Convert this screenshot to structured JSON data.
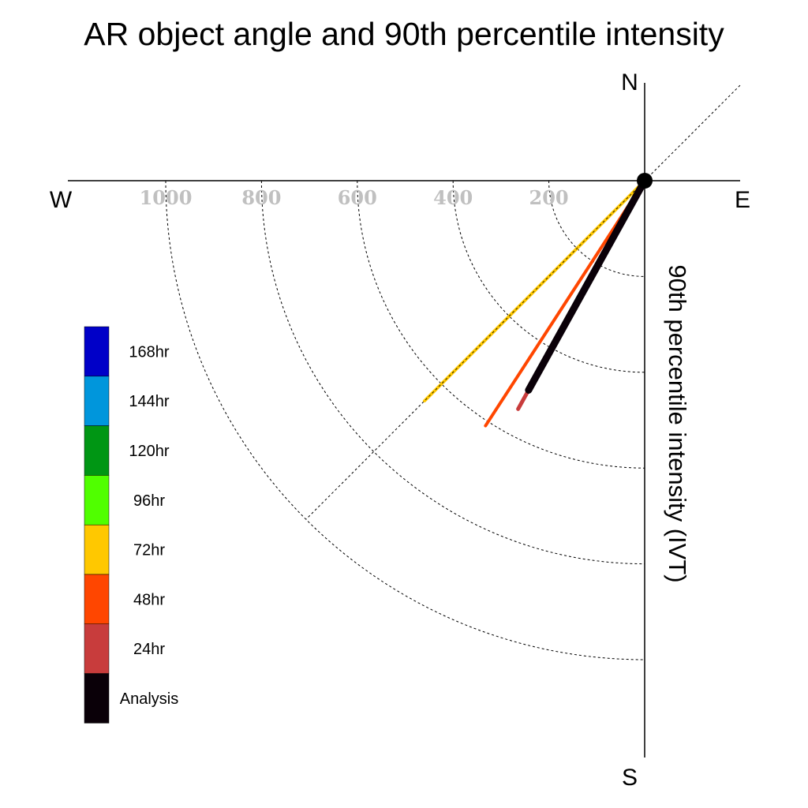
{
  "chart_data": {
    "type": "polar-vector",
    "title": "AR object angle and 90th percentile intensity",
    "axis_label": "90th percentile intensity (IVT)",
    "compass": {
      "north": "N",
      "south": "S",
      "east": "E",
      "west": "W"
    },
    "radial_ticks": [
      "200",
      "400",
      "600",
      "800",
      "1000"
    ],
    "radial_tick_values": [
      200,
      400,
      600,
      800,
      1000
    ],
    "rmax": 1000,
    "series": [
      {
        "name": "72hr",
        "color": "#ffc800",
        "intensity": 650,
        "angle_deg": 225
      },
      {
        "name": "48hr",
        "color": "#ff4600",
        "intensity": 610,
        "angle_deg": 213
      },
      {
        "name": "24hr",
        "color": "#c83c3c",
        "intensity": 545,
        "angle_deg": 209
      },
      {
        "name": "Analysis",
        "color": "#0a0008",
        "intensity": 500,
        "angle_deg": 209
      }
    ],
    "legend": [
      {
        "label": "168hr",
        "color": "#0000c8"
      },
      {
        "label": "144hr",
        "color": "#0096dc"
      },
      {
        "label": "120hr",
        "color": "#009614"
      },
      {
        "label": "96hr",
        "color": "#50ff00"
      },
      {
        "label": "72hr",
        "color": "#ffc800"
      },
      {
        "label": "48hr",
        "color": "#ff4600"
      },
      {
        "label": "24hr",
        "color": "#c83c3c"
      },
      {
        "label": "Analysis",
        "color": "#0a0008"
      }
    ]
  }
}
